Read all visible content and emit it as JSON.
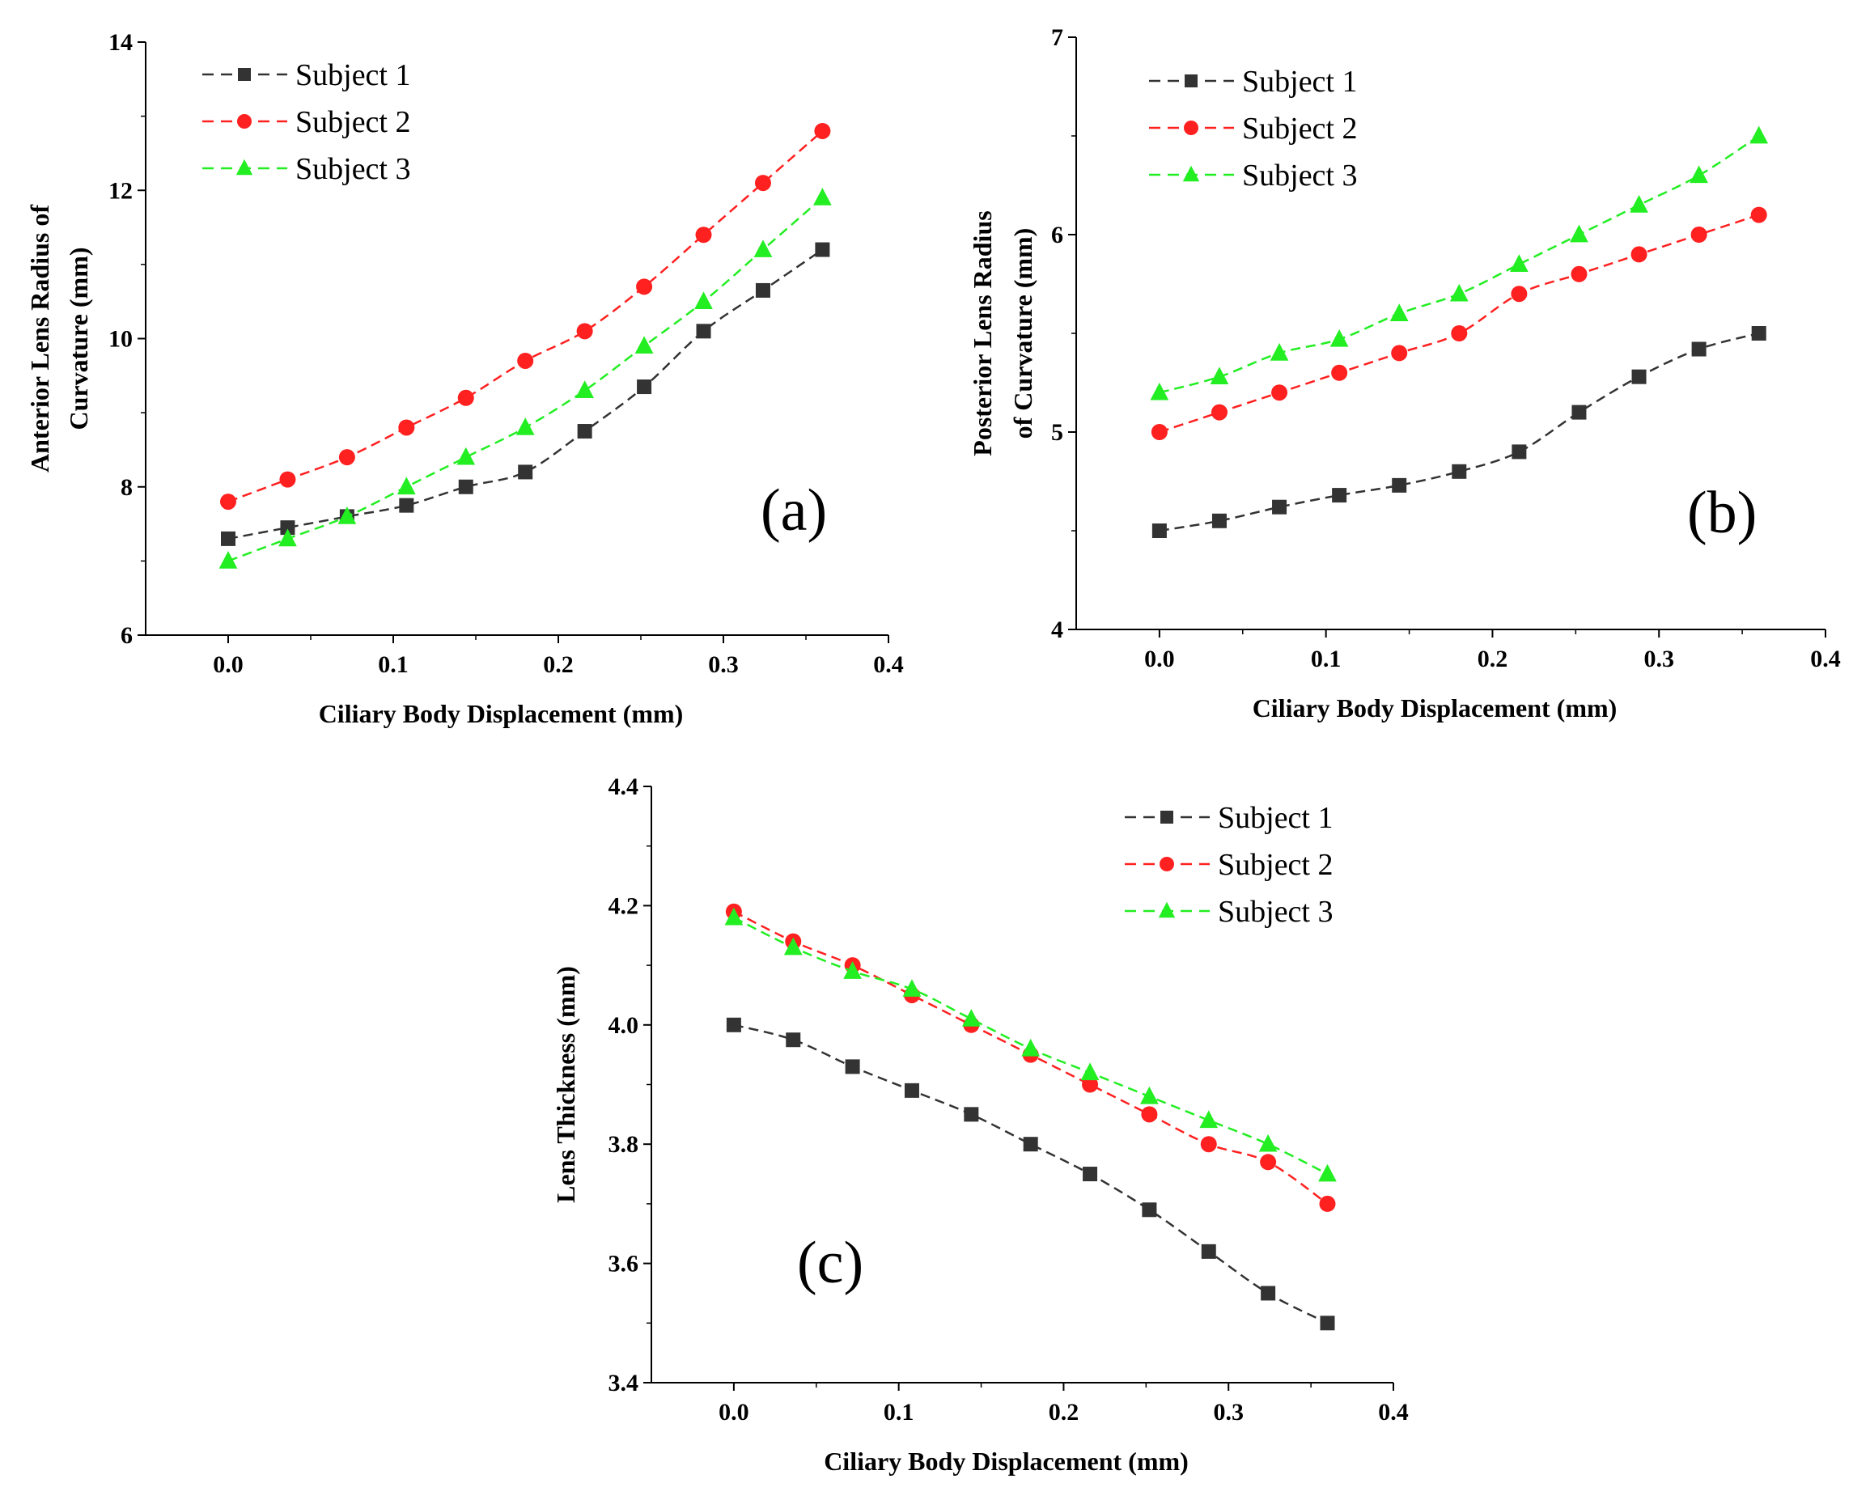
{
  "chart_data": [
    {
      "type": "line",
      "panel_label": "(a)",
      "xlabel": "Ciliary Body Displacement (mm)",
      "ylabel": [
        "Anterior Lens Radius of",
        "Curvature (mm)"
      ],
      "xlim": [
        -0.05,
        0.4
      ],
      "ylim": [
        6,
        14
      ],
      "xticks": [
        0.0,
        0.1,
        0.2,
        0.3,
        0.4
      ],
      "xtick_labels": [
        "0.0",
        "0.1",
        "0.2",
        "0.3",
        "0.4"
      ],
      "yticks": [
        6,
        8,
        10,
        12,
        14
      ],
      "ytick_labels": [
        "6",
        "8",
        "10",
        "12",
        "14"
      ],
      "legend_position": "top-left",
      "x": [
        0.0,
        0.036,
        0.072,
        0.108,
        0.144,
        0.18,
        0.216,
        0.252,
        0.288,
        0.324,
        0.36
      ],
      "series": [
        {
          "name": "Subject 1",
          "color": "#333333",
          "marker": "square",
          "values": [
            7.3,
            7.45,
            7.6,
            7.75,
            8.0,
            8.2,
            8.75,
            9.35,
            10.1,
            10.65,
            11.2
          ]
        },
        {
          "name": "Subject 2",
          "color": "#ff2020",
          "marker": "circle",
          "values": [
            7.8,
            8.1,
            8.4,
            8.8,
            9.2,
            9.7,
            10.1,
            10.7,
            11.4,
            12.1,
            12.8
          ]
        },
        {
          "name": "Subject 3",
          "color": "#22ee22",
          "marker": "triangle",
          "values": [
            7.0,
            7.3,
            7.6,
            8.0,
            8.4,
            8.8,
            9.3,
            9.9,
            10.5,
            11.2,
            11.9
          ]
        }
      ]
    },
    {
      "type": "line",
      "panel_label": "(b)",
      "xlabel": "Ciliary Body Displacement (mm)",
      "ylabel": [
        "Posterior Lens Radius",
        "of Curvature (mm)"
      ],
      "xlim": [
        -0.05,
        0.4
      ],
      "ylim": [
        4,
        7
      ],
      "xticks": [
        0.0,
        0.1,
        0.2,
        0.3,
        0.4
      ],
      "xtick_labels": [
        "0.0",
        "0.1",
        "0.2",
        "0.3",
        "0.4"
      ],
      "yticks": [
        4,
        5,
        6,
        7
      ],
      "ytick_labels": [
        "4",
        "5",
        "6",
        "7"
      ],
      "legend_position": "top-left",
      "x": [
        0.0,
        0.036,
        0.072,
        0.108,
        0.144,
        0.18,
        0.216,
        0.252,
        0.288,
        0.324,
        0.36
      ],
      "series": [
        {
          "name": "Subject 1",
          "color": "#333333",
          "marker": "square",
          "values": [
            4.5,
            4.55,
            4.62,
            4.68,
            4.73,
            4.8,
            4.9,
            5.1,
            5.28,
            5.42,
            5.5
          ]
        },
        {
          "name": "Subject 2",
          "color": "#ff2020",
          "marker": "circle",
          "values": [
            5.0,
            5.1,
            5.2,
            5.3,
            5.4,
            5.5,
            5.7,
            5.8,
            5.9,
            6.0,
            6.1
          ]
        },
        {
          "name": "Subject 3",
          "color": "#22ee22",
          "marker": "triangle",
          "values": [
            5.2,
            5.28,
            5.4,
            5.47,
            5.6,
            5.7,
            5.85,
            6.0,
            6.15,
            6.3,
            6.5
          ]
        }
      ]
    },
    {
      "type": "line",
      "panel_label": "(c)",
      "xlabel": "Ciliary Body Displacement (mm)",
      "ylabel": [
        "Lens Thickness (mm)"
      ],
      "xlim": [
        -0.05,
        0.4
      ],
      "ylim": [
        3.4,
        4.4
      ],
      "xticks": [
        0.0,
        0.1,
        0.2,
        0.3,
        0.4
      ],
      "xtick_labels": [
        "0.0",
        "0.1",
        "0.2",
        "0.3",
        "0.4"
      ],
      "yticks": [
        3.4,
        3.6,
        3.8,
        4.0,
        4.2,
        4.4
      ],
      "ytick_labels": [
        "3.4",
        "3.6",
        "3.8",
        "4.0",
        "4.2",
        "4.4"
      ],
      "legend_position": "top-right",
      "x": [
        0.0,
        0.036,
        0.072,
        0.108,
        0.144,
        0.18,
        0.216,
        0.252,
        0.288,
        0.324,
        0.36
      ],
      "series": [
        {
          "name": "Subject 1",
          "color": "#333333",
          "marker": "square",
          "values": [
            4.0,
            3.975,
            3.93,
            3.89,
            3.85,
            3.8,
            3.75,
            3.69,
            3.62,
            3.55,
            3.5
          ]
        },
        {
          "name": "Subject 2",
          "color": "#ff2020",
          "marker": "circle",
          "values": [
            4.19,
            4.14,
            4.1,
            4.05,
            4.0,
            3.95,
            3.9,
            3.85,
            3.8,
            3.77,
            3.7
          ]
        },
        {
          "name": "Subject 3",
          "color": "#22ee22",
          "marker": "triangle",
          "values": [
            4.18,
            4.13,
            4.09,
            4.06,
            4.01,
            3.96,
            3.92,
            3.88,
            3.84,
            3.8,
            3.75
          ]
        }
      ]
    }
  ]
}
